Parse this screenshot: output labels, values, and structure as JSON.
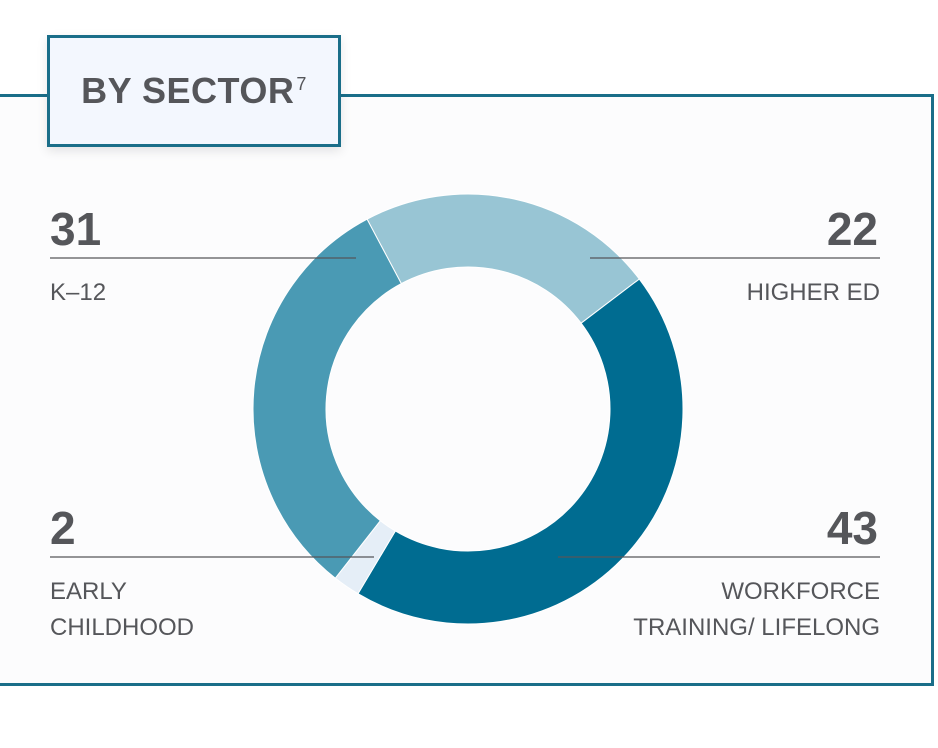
{
  "header": {
    "title": "BY SECTOR",
    "footnote": "7"
  },
  "colors": {
    "k12": "#4a9ab4",
    "higher_ed": "#98c5d4",
    "workforce": "#006c91",
    "early_childhood": "#e5eef7",
    "frame": "#1a6e89",
    "text": "#55565a"
  },
  "chart_data": {
    "type": "pie",
    "variant": "donut",
    "title": "BY SECTOR",
    "slices": [
      {
        "label": "K–12",
        "value": 31,
        "color": "#4a9ab4"
      },
      {
        "label": "HIGHER ED",
        "value": 22,
        "color": "#98c5d4"
      },
      {
        "label": "WORKFORCE TRAINING/ LIFELONG",
        "value": 43,
        "color": "#006c91"
      },
      {
        "label": "EARLY CHILDHOOD",
        "value": 2,
        "color": "#e5eef7"
      }
    ]
  },
  "stats": {
    "k12": {
      "value": "31",
      "label": "K–12"
    },
    "higher_ed": {
      "value": "22",
      "label": "HIGHER ED"
    },
    "early_childhood": {
      "value": "2",
      "label_line1": "EARLY",
      "label_line2": "CHILDHOOD"
    },
    "workforce": {
      "value": "43",
      "label_line1": "WORKFORCE",
      "label_line2": "TRAINING/ LIFELONG"
    }
  }
}
